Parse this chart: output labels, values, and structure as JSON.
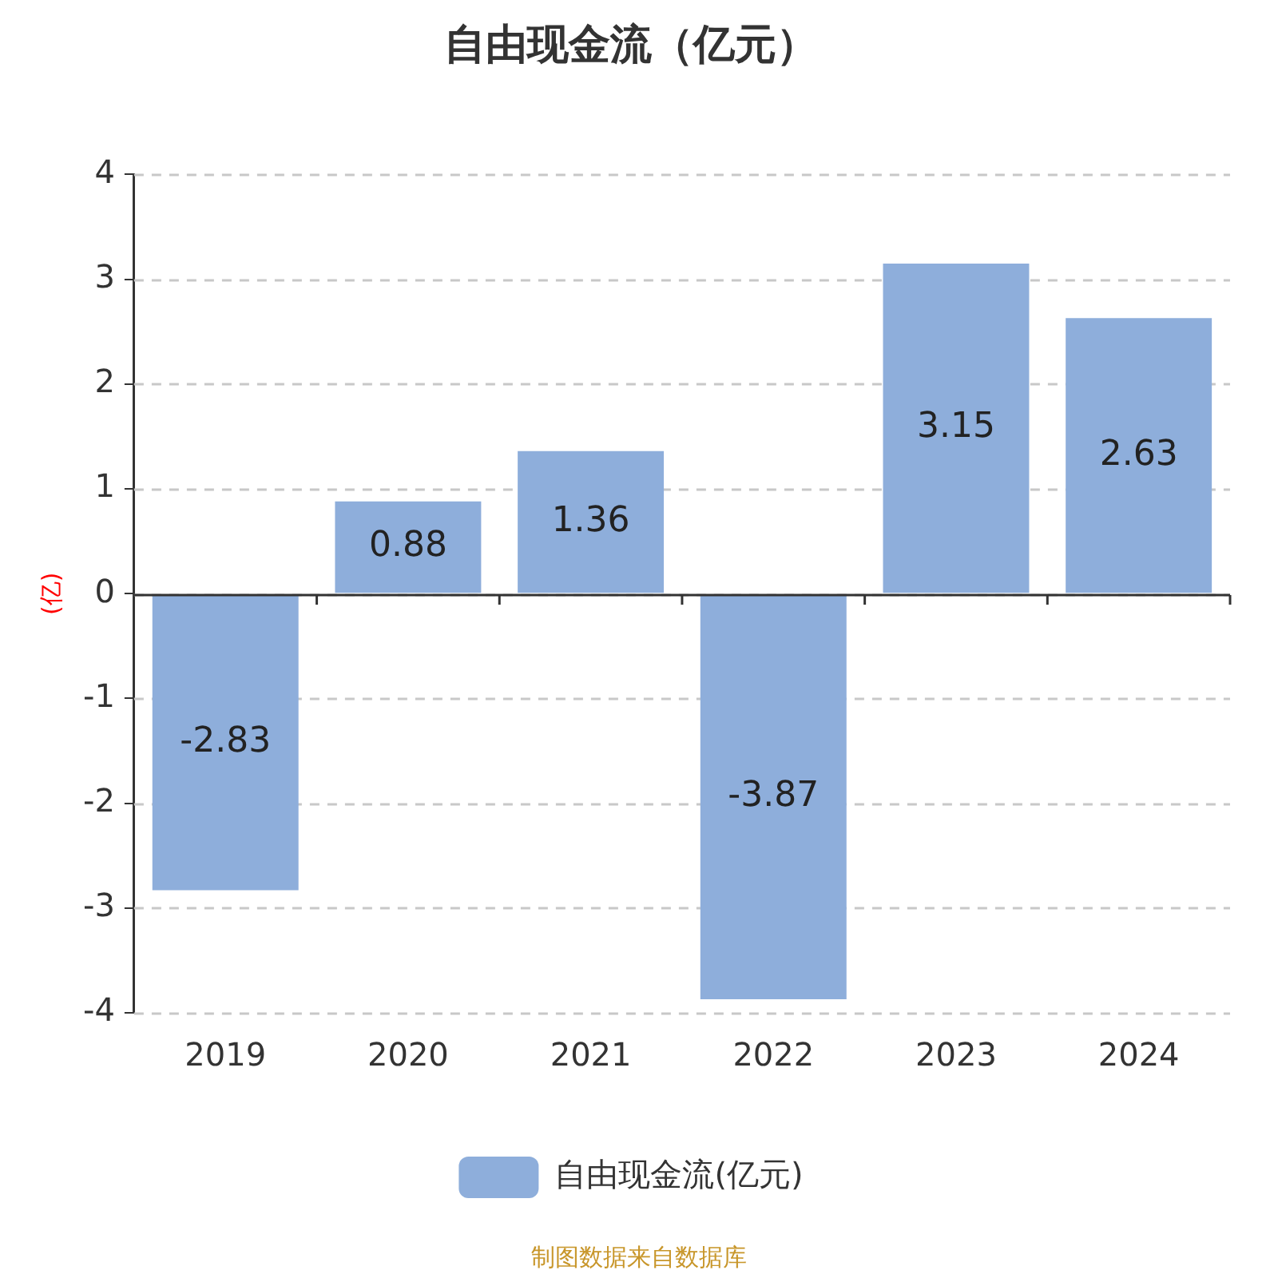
{
  "chart_data": {
    "type": "bar",
    "title": "自由现金流（亿元）",
    "ylabel": "(亿)",
    "categories": [
      "2019",
      "2020",
      "2021",
      "2022",
      "2023",
      "2024"
    ],
    "series": [
      {
        "name": "自由现金流(亿元)",
        "color": "#8eaedb",
        "values": [
          -2.83,
          0.88,
          1.36,
          -3.87,
          3.15,
          2.63
        ]
      }
    ],
    "ylim": [
      -4,
      4
    ],
    "yticks": [
      -4,
      -3,
      -2,
      -1,
      0,
      1,
      2,
      3,
      4
    ],
    "grid": "y",
    "legend": "bottom",
    "data_labels": true,
    "annotations": [
      "制图数据来自数据库"
    ]
  }
}
